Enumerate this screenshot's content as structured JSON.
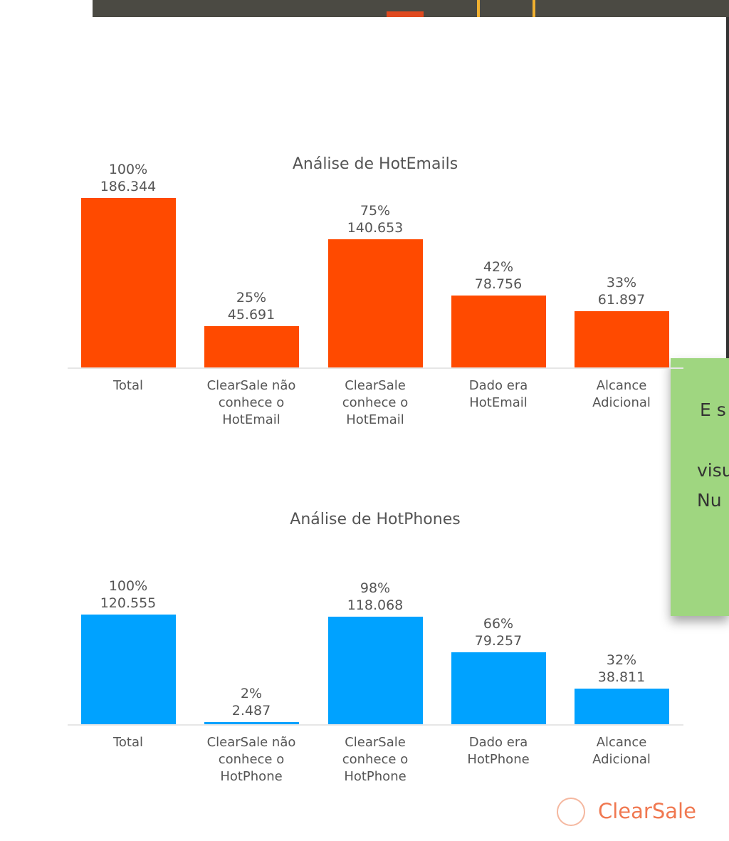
{
  "chart_data": [
    {
      "type": "bar",
      "title": "Análise de HotEmails",
      "categories": [
        "Total",
        "ClearSale não conhece o HotEmail",
        "ClearSale conhece o HotEmail",
        "Dado era HotEmail",
        "Alcance Adicional"
      ],
      "values": [
        186344,
        45691,
        140653,
        78756,
        61897
      ],
      "value_labels": [
        "186.344",
        "45.691",
        "140.653",
        "78.756",
        "61.897"
      ],
      "share_labels": [
        "100%",
        "25%",
        "75%",
        "42%",
        "33%"
      ],
      "color": "#ff4a00"
    },
    {
      "type": "bar",
      "title": "Análise de HotPhones",
      "categories": [
        "Total",
        "ClearSale não conhece o HotPhone",
        "ClearSale conhece o HotPhone",
        "Dado era HotPhone",
        "Alcance Adicional"
      ],
      "values": [
        120555,
        2487,
        118068,
        79257,
        38811
      ],
      "value_labels": [
        "120.555",
        "2.487",
        "118.068",
        "79.257",
        "38.811"
      ],
      "share_labels": [
        "100%",
        "2%",
        "98%",
        "66%",
        "32%"
      ],
      "color": "#00a2ff"
    }
  ],
  "note": {
    "lines": [
      "E s",
      "visu",
      "Nu"
    ]
  },
  "logo": {
    "text": "ClearSale"
  }
}
